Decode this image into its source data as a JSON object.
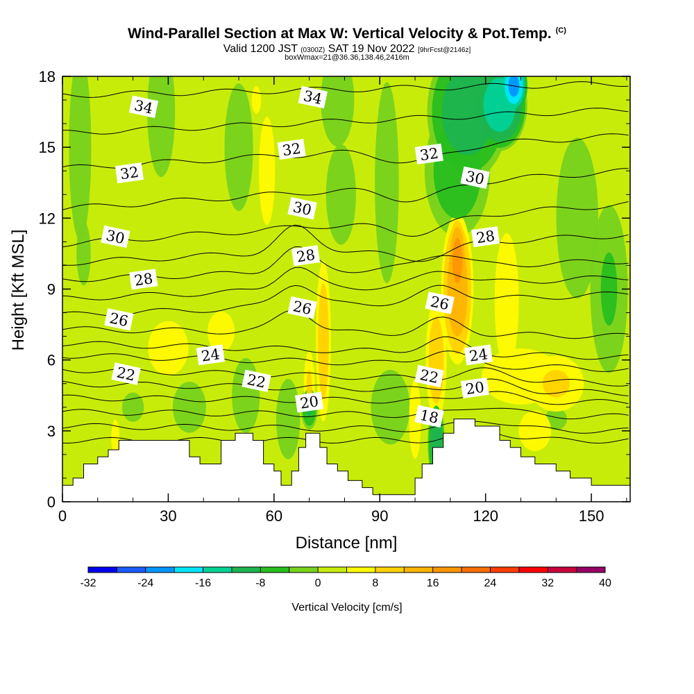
{
  "header": {
    "title": "Wind-Parallel Section at Max W: Vertical Velocity & Pot.Temp.",
    "title_suffix": "(C)",
    "valid_a": "Valid 1200 JST",
    "valid_b": "(0300Z)",
    "valid_c": "SAT 19 Nov 2022",
    "valid_d": "[9hrFcst@2146z]",
    "line3": "boxWmax=21@36.36,138.46,2416m"
  },
  "chart_data": {
    "type": "heatmap",
    "xlabel": "Distance [nm]",
    "ylabel": "Height [Kft MSL]",
    "xlim": [
      0,
      161
    ],
    "ylim": [
      0,
      18
    ],
    "x_ticks": [
      "0",
      "30",
      "60",
      "90",
      "120",
      "150"
    ],
    "y_ticks": [
      "0",
      "3",
      "6",
      "9",
      "12",
      "15",
      "18"
    ],
    "colorbar": {
      "label": "Vertical Velocity [cm/s]",
      "tick_labels": [
        "-32",
        "-24",
        "-16",
        "-8",
        "0",
        "8",
        "16",
        "24",
        "32",
        "40"
      ],
      "levels": [
        -32,
        -28,
        -24,
        -20,
        -16,
        -12,
        -8,
        -4,
        0,
        4,
        8,
        12,
        16,
        20,
        24,
        28,
        32,
        36,
        40
      ],
      "colors": [
        "#0000f0",
        "#1a5aff",
        "#0096ff",
        "#00e6ff",
        "#00d296",
        "#1eb450",
        "#28be1e",
        "#78d21e",
        "#c8ec0a",
        "#fffa00",
        "#ffd200",
        "#ffb400",
        "#ff9600",
        "#ff6e00",
        "#ff3c00",
        "#ff0000",
        "#c8003c",
        "#960064"
      ]
    },
    "terrain_kft": [
      [
        0,
        0.7
      ],
      [
        3,
        0.7
      ],
      [
        3,
        1
      ],
      [
        6,
        1
      ],
      [
        6,
        1.6
      ],
      [
        10,
        1.6
      ],
      [
        10,
        1.9
      ],
      [
        13,
        1.9
      ],
      [
        13,
        2.2
      ],
      [
        16,
        2.2
      ],
      [
        16,
        2.6
      ],
      [
        36,
        2.6
      ],
      [
        36,
        1.9
      ],
      [
        39,
        1.9
      ],
      [
        39,
        1.6
      ],
      [
        45,
        1.6
      ],
      [
        45,
        2.6
      ],
      [
        49,
        2.6
      ],
      [
        49,
        2.9
      ],
      [
        54,
        2.9
      ],
      [
        54,
        2.6
      ],
      [
        57,
        2.6
      ],
      [
        57,
        1.6
      ],
      [
        60,
        1.6
      ],
      [
        60,
        1.3
      ],
      [
        62,
        1.3
      ],
      [
        62,
        0.7
      ],
      [
        65,
        0.7
      ],
      [
        65,
        1.3
      ],
      [
        67,
        1.3
      ],
      [
        67,
        2.3
      ],
      [
        69,
        2.3
      ],
      [
        69,
        2.9
      ],
      [
        73,
        2.9
      ],
      [
        73,
        2.3
      ],
      [
        75,
        2.3
      ],
      [
        75,
        1.6
      ],
      [
        78,
        1.6
      ],
      [
        78,
        1.3
      ],
      [
        81,
        1.3
      ],
      [
        81,
        0.9
      ],
      [
        85,
        0.9
      ],
      [
        85,
        0.6
      ],
      [
        88,
        0.6
      ],
      [
        88,
        0.3
      ],
      [
        100,
        0.3
      ],
      [
        100,
        1
      ],
      [
        102,
        1
      ],
      [
        102,
        1.6
      ],
      [
        105,
        1.6
      ],
      [
        105,
        2.3
      ],
      [
        108,
        2.3
      ],
      [
        108,
        2.9
      ],
      [
        111,
        2.9
      ],
      [
        111,
        3.5
      ],
      [
        117,
        3.5
      ],
      [
        117,
        3.2
      ],
      [
        124,
        3.2
      ],
      [
        124,
        2.6
      ],
      [
        127,
        2.6
      ],
      [
        127,
        2.3
      ],
      [
        130,
        2.3
      ],
      [
        130,
        1.9
      ],
      [
        134,
        1.9
      ],
      [
        134,
        1.6
      ],
      [
        140,
        1.6
      ],
      [
        140,
        1.3
      ],
      [
        144,
        1.3
      ],
      [
        144,
        1
      ],
      [
        150,
        1
      ],
      [
        150,
        0.7
      ],
      [
        161,
        0.7
      ]
    ],
    "isentropes_C": [
      {
        "value": 34,
        "y_left": 17.2,
        "y_right": 17.7,
        "label_x": 23,
        "label_y": 16.7
      },
      {
        "value": 34,
        "y_left": 17.2,
        "y_right": 17.7,
        "label_x": 71,
        "label_y": 17.1
      },
      {
        "value": 32,
        "y_left": 14.1,
        "y_right": 15.5,
        "label_x": 19,
        "label_y": 13.9
      },
      {
        "value": 32,
        "y_left": 14.1,
        "y_right": 15.5,
        "label_x": 65,
        "label_y": 14.9
      },
      {
        "value": 32,
        "y_left": 14.1,
        "y_right": 15.5,
        "label_x": 104,
        "label_y": 14.7
      },
      {
        "value": 30,
        "y_left": 10.9,
        "y_right": 12.6,
        "label_x": 15,
        "label_y": 11.2
      },
      {
        "value": 30,
        "y_left": 10.9,
        "y_right": 12.6,
        "label_x": 68,
        "label_y": 12.4
      },
      {
        "value": 30,
        "y_left": 10.9,
        "y_right": 12.6,
        "label_x": 117,
        "label_y": 13.7
      },
      {
        "value": 28,
        "y_left": 9.4,
        "y_right": 10.2,
        "label_x": 23,
        "label_y": 9.4
      },
      {
        "value": 28,
        "y_left": 9.4,
        "y_right": 10.2,
        "label_x": 69,
        "label_y": 10.4
      },
      {
        "value": 28,
        "y_left": 9.4,
        "y_right": 10.2,
        "label_x": 120,
        "label_y": 11.2
      },
      {
        "value": 26,
        "y_left": 7.9,
        "y_right": 8.8,
        "label_x": 16,
        "label_y": 7.7
      },
      {
        "value": 26,
        "y_left": 7.9,
        "y_right": 8.8,
        "label_x": 68,
        "label_y": 8.2
      },
      {
        "value": 26,
        "y_left": 7.9,
        "y_right": 8.8,
        "label_x": 107,
        "label_y": 8.4
      },
      {
        "value": 24,
        "y_left": 6.7,
        "y_right": 6.1,
        "label_x": 42,
        "label_y": 6.2
      },
      {
        "value": 24,
        "y_left": 6.7,
        "y_right": 6.1,
        "label_x": 118,
        "label_y": 6.2
      },
      {
        "value": 22,
        "y_left": 5.6,
        "y_right": 5.0,
        "label_x": 18,
        "label_y": 5.4
      },
      {
        "value": 22,
        "y_left": 5.6,
        "y_right": 5.0,
        "label_x": 55,
        "label_y": 5.1
      },
      {
        "value": 22,
        "y_left": 5.6,
        "y_right": 5.0,
        "label_x": 104,
        "label_y": 5.3
      },
      {
        "value": 20,
        "y_left": 4.4,
        "y_right": 4.2,
        "label_x": 70,
        "label_y": 4.2
      },
      {
        "value": 20,
        "y_left": 4.4,
        "y_right": 4.2,
        "label_x": 117,
        "label_y": 4.8
      },
      {
        "value": 18,
        "y_left": 3.6,
        "y_right": 3.4,
        "label_x": 104,
        "label_y": 3.6
      }
    ]
  }
}
